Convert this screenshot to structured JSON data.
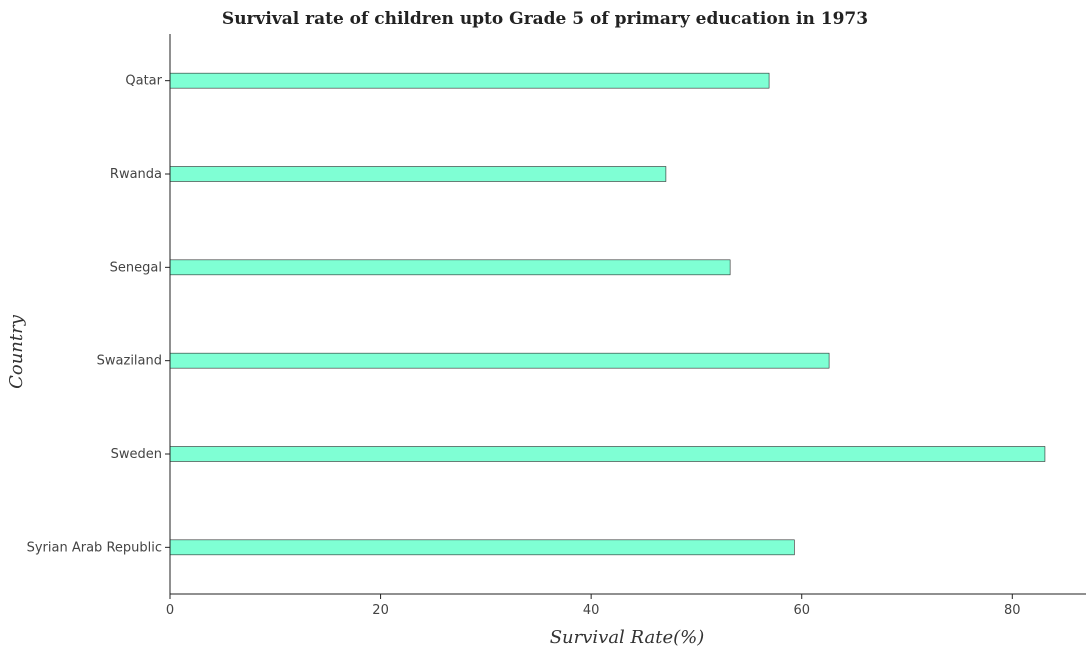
{
  "colors": {
    "bar_fill": "#7fffd4",
    "axis": "#222222",
    "text": "#444444"
  },
  "chart_data": {
    "type": "bar",
    "orientation": "horizontal",
    "title": "Survival rate of children upto Grade 5 of primary education in 1973",
    "xlabel": "Survival Rate(%)",
    "ylabel": "Country",
    "xlim": [
      0,
      87
    ],
    "xticks": [
      "0",
      "20",
      "40",
      "60",
      "80"
    ],
    "categories": [
      "Qatar",
      "Rwanda",
      "Senegal",
      "Swaziland",
      "Sweden",
      "Syrian Arab Republic"
    ],
    "values": [
      56.9,
      47.1,
      53.2,
      62.6,
      83.1,
      59.3
    ],
    "grid": false,
    "legend": "none"
  }
}
